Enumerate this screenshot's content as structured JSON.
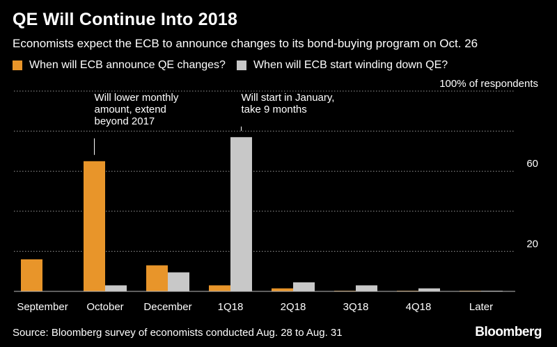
{
  "title": "QE Will Continue Into 2018",
  "subtitle": "Economists expect the ECB to announce changes to its bond-buying program on Oct. 26",
  "legend": [
    {
      "label": "When will ECB announce QE changes?",
      "color": "#E8952A"
    },
    {
      "label": "When will ECB start winding down QE?",
      "color": "#C8C8C8"
    }
  ],
  "source": "Source: Bloomberg survey of economists conducted Aug. 28 to Aug. 31",
  "logo": "Bloomberg",
  "chart_data": {
    "type": "bar",
    "categories": [
      "September",
      "October",
      "December",
      "1Q18",
      "2Q18",
      "3Q18",
      "4Q18",
      "Later"
    ],
    "series": [
      {
        "name": "When will ECB announce QE changes?",
        "color": "#E8952A",
        "values": [
          16,
          65,
          13,
          3,
          1.5,
          0.3,
          0.3,
          0.3
        ]
      },
      {
        "name": "When will ECB start winding down QE?",
        "color": "#C8C8C8",
        "values": [
          0,
          3,
          9.5,
          77,
          4.5,
          3,
          1.5,
          0.3
        ]
      }
    ],
    "ylim": [
      0,
      100
    ],
    "yticks": [
      {
        "value": 20,
        "label": "20"
      },
      {
        "value": 60,
        "label": "60"
      },
      {
        "value": 100,
        "label": "100% of respondents"
      }
    ],
    "gridlines": [
      20,
      40,
      60,
      80,
      100
    ],
    "grid": true,
    "annotations": [
      {
        "category_index": 1,
        "series_index": 0,
        "lines": [
          "Will lower monthly",
          "amount, extend",
          "beyond 2017"
        ]
      },
      {
        "category_index": 3,
        "series_index": 1,
        "lines": [
          "Will start in January,",
          "take 9 months"
        ]
      }
    ]
  }
}
